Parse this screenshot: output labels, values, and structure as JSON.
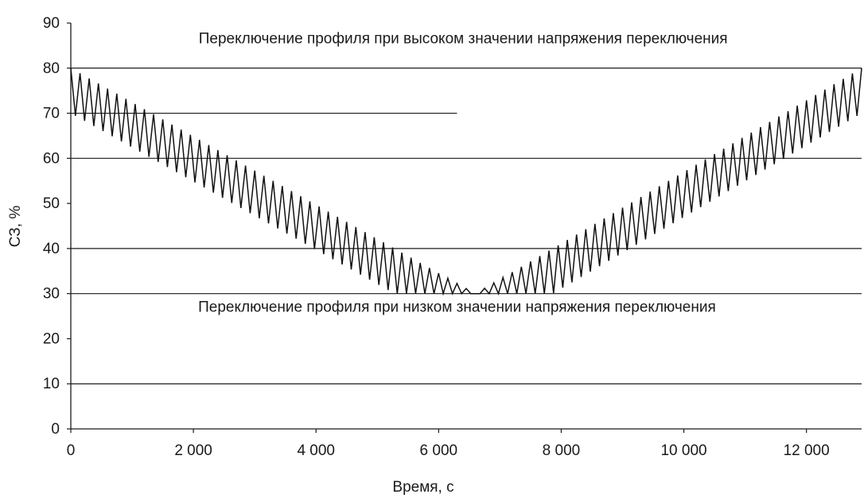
{
  "chart_data": {
    "type": "line",
    "title": "",
    "xlabel": "Время, с",
    "ylabel": "СЗ, %",
    "xlim": [
      0,
      12900
    ],
    "ylim": [
      0,
      90
    ],
    "x_ticks": [
      0,
      2000,
      4000,
      6000,
      8000,
      10000,
      12000
    ],
    "x_tick_labels": [
      "0",
      "2 000",
      "4 000",
      "6 000",
      "8 000",
      "10 000",
      "12 000"
    ],
    "y_ticks": [
      0,
      10,
      20,
      30,
      40,
      50,
      60,
      70,
      80,
      90
    ],
    "y_tick_labels": [
      "0",
      "10",
      "20",
      "30",
      "40",
      "50",
      "60",
      "70",
      "80",
      "90"
    ],
    "grid": true,
    "reference_lines": [
      {
        "y": 80,
        "x_range": [
          0,
          12900
        ]
      },
      {
        "y": 70,
        "x_range": [
          0,
          6300
        ]
      },
      {
        "y": 60,
        "x_range": [
          0,
          12900
        ]
      },
      {
        "y": 40,
        "x_range": [
          0,
          12900
        ]
      },
      {
        "y": 30,
        "x_range": [
          0,
          12900
        ]
      },
      {
        "y": 10,
        "x_range": [
          0,
          12900
        ]
      }
    ],
    "annotations": [
      {
        "text": "Переключение профиля при высоком значении напряжения переключения",
        "x": 6400,
        "y": 85.5
      },
      {
        "text": "Переключение профиля при низком значении напряжения переключения",
        "x": 6300,
        "y": 26.0
      }
    ],
    "series": [
      {
        "segments": [
          {
            "x_start": 0,
            "x_end": 6600,
            "y_start": 80,
            "y_end": 30,
            "swing": 10,
            "period": 150
          },
          {
            "x_start": 6600,
            "x_end": 12900,
            "y_start": 30,
            "y_end": 80,
            "swing": 10,
            "period": 150
          }
        ]
      }
    ]
  }
}
